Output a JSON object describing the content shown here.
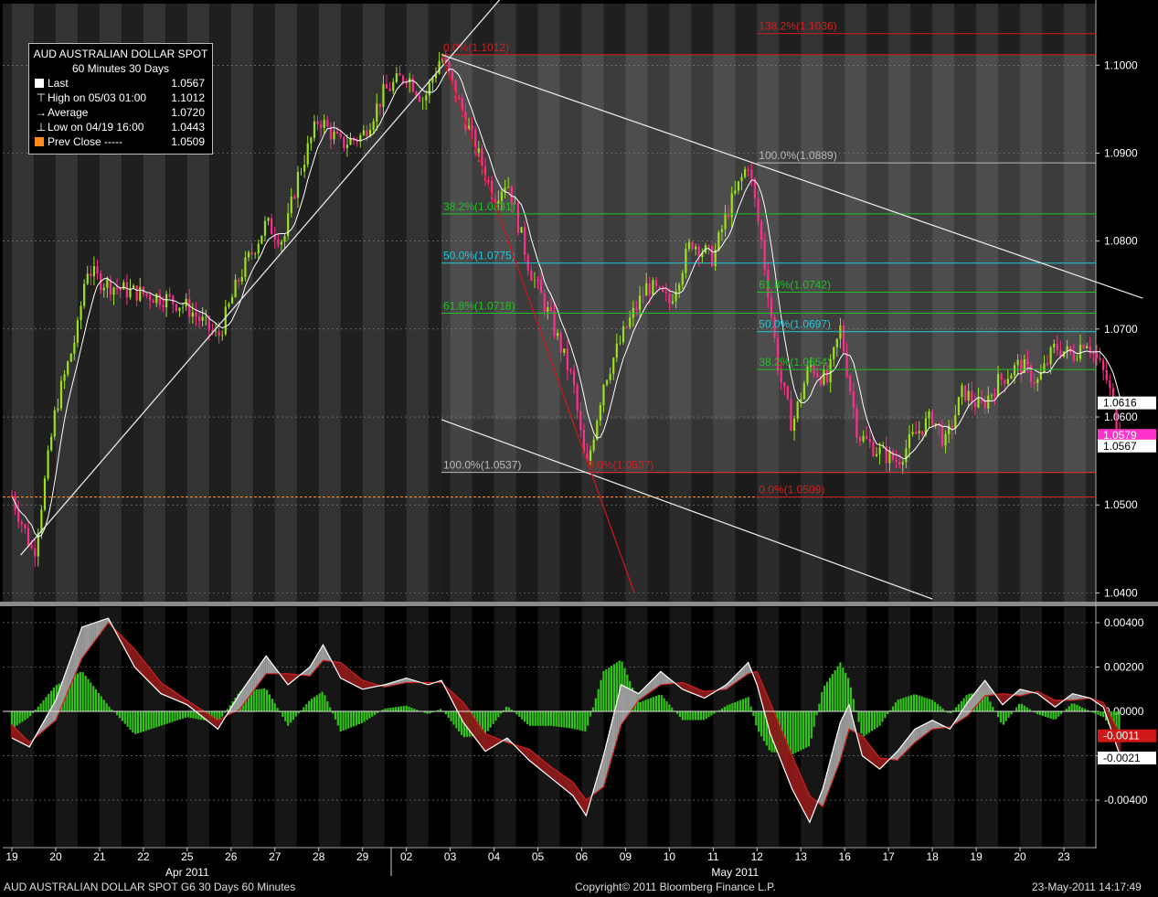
{
  "legend": {
    "title": "AUD  AUSTRALIAN DOLLAR SPOT",
    "subtitle": "60 Minutes  30 Days",
    "rows": [
      {
        "label": "Last",
        "value": "1.0567",
        "color": "#ffffff",
        "marker": "box"
      },
      {
        "label": "High on 05/03 01:00",
        "value": "1.1012",
        "color": "#ffffff",
        "marker": "high"
      },
      {
        "label": "Average",
        "value": "1.0720",
        "color": "#ffffff",
        "marker": "avg"
      },
      {
        "label": "Low on 04/19 16:00",
        "value": "1.0443",
        "color": "#ffffff",
        "marker": "low"
      },
      {
        "label": "Prev Close -----",
        "value": "1.0509",
        "color": "#ff8c1a",
        "marker": "box"
      }
    ]
  },
  "footer": {
    "left": "AUD  AUSTRALIAN DOLLAR SPOT      G6    30 Days  60 Minutes",
    "center": "Copyright© 2011 Bloomberg Finance L.P.",
    "right": "23-May-2011 14:17:49"
  },
  "chart_data": [
    {
      "type": "candlestick",
      "title": "AUD AUSTRALIAN DOLLAR SPOT",
      "ylim": [
        1.039,
        1.107
      ],
      "y_ticks": [
        "1.1000",
        "1.0900",
        "1.0800",
        "1.0700",
        "1.0600",
        "1.0500",
        "1.0400"
      ],
      "x_ticks": [
        "19",
        "20",
        "21",
        "22",
        "25",
        "26",
        "27",
        "28",
        "29",
        "02",
        "03",
        "04",
        "05",
        "06",
        "09",
        "10",
        "11",
        "12",
        "13",
        "16",
        "17",
        "18",
        "19",
        "20",
        "23"
      ],
      "month_labels": [
        "Apr 2011",
        "May 2011"
      ],
      "price_path": [
        [
          0,
          1.051
        ],
        [
          0.5,
          1.0443
        ],
        [
          1.0,
          1.061
        ],
        [
          1.5,
          1.07
        ],
        [
          1.7,
          1.077
        ],
        [
          2.0,
          1.0755
        ],
        [
          2.5,
          1.0745
        ],
        [
          3.0,
          1.074
        ],
        [
          3.5,
          1.0735
        ],
        [
          4.0,
          1.0725
        ],
        [
          4.7,
          1.069
        ],
        [
          5.2,
          1.076
        ],
        [
          5.8,
          1.082
        ],
        [
          6.2,
          1.08
        ],
        [
          6.5,
          1.087
        ],
        [
          7.0,
          1.094
        ],
        [
          7.5,
          1.091
        ],
        [
          8.0,
          1.092
        ],
        [
          8.5,
          1.097
        ],
        [
          9.0,
          1.099
        ],
        [
          9.4,
          1.096
        ],
        [
          9.8,
          1.1012
        ],
        [
          10.4,
          1.093
        ],
        [
          11.0,
          1.085
        ],
        [
          11.3,
          1.087
        ],
        [
          11.8,
          1.077
        ],
        [
          12.3,
          1.071
        ],
        [
          12.8,
          1.064
        ],
        [
          13.1,
          1.0537
        ],
        [
          13.5,
          1.064
        ],
        [
          14.0,
          1.07
        ],
        [
          14.5,
          1.075
        ],
        [
          15.0,
          1.073
        ],
        [
          15.5,
          1.08
        ],
        [
          16.0,
          1.078
        ],
        [
          16.3,
          1.083
        ],
        [
          16.8,
          1.0889
        ],
        [
          17.1,
          1.08
        ],
        [
          17.5,
          1.065
        ],
        [
          17.8,
          1.059
        ],
        [
          18.2,
          1.066
        ],
        [
          18.6,
          1.064
        ],
        [
          18.9,
          1.07
        ],
        [
          19.3,
          1.058
        ],
        [
          19.8,
          1.056
        ],
        [
          20.2,
          1.055
        ],
        [
          20.6,
          1.058
        ],
        [
          21.0,
          1.06
        ],
        [
          21.3,
          1.057
        ],
        [
          21.7,
          1.063
        ],
        [
          22.1,
          1.061
        ],
        [
          22.5,
          1.064
        ],
        [
          23.0,
          1.066
        ],
        [
          23.4,
          1.064
        ],
        [
          23.8,
          1.068
        ],
        [
          24.2,
          1.067
        ],
        [
          24.5,
          1.069
        ],
        [
          24.8,
          1.066
        ],
        [
          25.0,
          1.064
        ],
        [
          25.3,
          1.057
        ]
      ],
      "last_value_labels": [
        {
          "label": "1.0616",
          "value": 1.0616,
          "color": "#ffffff"
        },
        {
          "label": "1.0579",
          "value": 1.0579,
          "color": "#ff33cc"
        },
        {
          "label": "1.0567",
          "value": 1.0567,
          "color": "#ffffff"
        }
      ],
      "prev_close": 1.0509,
      "fib_levels": [
        {
          "label": "138.2%(1.1036)",
          "value": 1.1036,
          "color": "#d02020",
          "x_from": 17.0
        },
        {
          "label": "0.0%(1.1012)",
          "value": 1.1012,
          "color": "#d02020",
          "x_from": 9.8
        },
        {
          "label": "100.0%(1.0889)",
          "value": 1.0889,
          "color": "#b8b8b8",
          "x_from": 17.0
        },
        {
          "label": "38.2%(1.0831)",
          "value": 1.0831,
          "color": "#22c022",
          "x_from": 9.8
        },
        {
          "label": "50.0%(1.0775)",
          "value": 1.0775,
          "color": "#22c8d8",
          "x_from": 9.8
        },
        {
          "label": "61.8%(1.0742)",
          "value": 1.0742,
          "color": "#22c022",
          "x_from": 17.0
        },
        {
          "label": "61.8%(1.0718)",
          "value": 1.0718,
          "color": "#22c022",
          "x_from": 9.8
        },
        {
          "label": "50.0%(1.0697)",
          "value": 1.0697,
          "color": "#22c8d8",
          "x_from": 17.0
        },
        {
          "label": "38.2%(1.0654)",
          "value": 1.0654,
          "color": "#22c022",
          "x_from": 17.0
        },
        {
          "label": "100.0%(1.0537)",
          "value": 1.0537,
          "color": "#b8b8b8",
          "x_from": 9.8
        },
        {
          "label": "0.0%(1.0537)",
          "value": 1.0537,
          "color": "#d02020",
          "x_from": 13.1
        },
        {
          "label": "0.0%(1.0509)",
          "value": 1.0509,
          "color": "#d02020",
          "x_from": 17.0
        }
      ],
      "trendlines": [
        {
          "from": [
            0.2,
            1.0443
          ],
          "to": [
            13.3,
            1.12
          ],
          "color": "#e6e6e6"
        },
        {
          "from": [
            9.8,
            1.1012
          ],
          "to": [
            25.8,
            1.0735
          ],
          "color": "#e6e6e6"
        },
        {
          "from": [
            9.8,
            1.0597
          ],
          "to": [
            21.0,
            1.0393
          ],
          "color": "#e6e6e6"
        },
        {
          "from": [
            9.8,
            1.1012
          ],
          "to": [
            14.2,
            1.04
          ],
          "color": "#c81818"
        }
      ]
    },
    {
      "type": "macd",
      "ylim": [
        -0.0061,
        0.0047
      ],
      "y_ticks": [
        "0.00400",
        "0.00200",
        "0.00000",
        "-0.00200",
        "-0.00400"
      ],
      "value_labels": [
        {
          "label": "-0.0011",
          "value": -0.0011,
          "color": "#d01818"
        },
        {
          "label": "-0.0021",
          "value": -0.0021,
          "color": "#ffffff"
        }
      ],
      "macd_path": [
        [
          0,
          -0.0012
        ],
        [
          0.4,
          -0.0016
        ],
        [
          1.0,
          0.0005
        ],
        [
          1.6,
          0.0038
        ],
        [
          2.2,
          0.0042
        ],
        [
          2.8,
          0.002
        ],
        [
          3.4,
          0.0008
        ],
        [
          4.0,
          0.0003
        ],
        [
          4.7,
          -0.0008
        ],
        [
          5.2,
          0.0008
        ],
        [
          5.8,
          0.0025
        ],
        [
          6.3,
          0.0012
        ],
        [
          6.8,
          0.002
        ],
        [
          7.1,
          0.003
        ],
        [
          7.5,
          0.0015
        ],
        [
          8.0,
          0.001
        ],
        [
          8.5,
          0.0012
        ],
        [
          9.0,
          0.0015
        ],
        [
          9.5,
          0.0012
        ],
        [
          9.8,
          0.0014
        ],
        [
          10.3,
          -0.0005
        ],
        [
          10.8,
          -0.0018
        ],
        [
          11.3,
          -0.0012
        ],
        [
          11.8,
          -0.0022
        ],
        [
          12.3,
          -0.003
        ],
        [
          12.8,
          -0.0038
        ],
        [
          13.1,
          -0.0047
        ],
        [
          13.5,
          -0.002
        ],
        [
          13.9,
          0.0012
        ],
        [
          14.3,
          0.0008
        ],
        [
          14.8,
          0.0018
        ],
        [
          15.3,
          0.001
        ],
        [
          15.8,
          0.0006
        ],
        [
          16.3,
          0.0012
        ],
        [
          16.8,
          0.0022
        ],
        [
          17.0,
          0.0012
        ],
        [
          17.3,
          -0.001
        ],
        [
          17.8,
          -0.0035
        ],
        [
          18.2,
          -0.005
        ],
        [
          18.5,
          -0.0035
        ],
        [
          18.9,
          -0.0005
        ],
        [
          19.1,
          0.0003
        ],
        [
          19.4,
          -0.002
        ],
        [
          19.8,
          -0.0026
        ],
        [
          20.2,
          -0.0018
        ],
        [
          20.6,
          -0.0008
        ],
        [
          21.0,
          -0.0004
        ],
        [
          21.4,
          -0.0008
        ],
        [
          21.8,
          0.0004
        ],
        [
          22.2,
          0.0014
        ],
        [
          22.6,
          0.0003
        ],
        [
          23.0,
          0.001
        ],
        [
          23.4,
          0.0008
        ],
        [
          23.8,
          0.0002
        ],
        [
          24.2,
          0.0008
        ],
        [
          24.6,
          0.0006
        ],
        [
          24.9,
          0.0002
        ],
        [
          25.3,
          -0.0021
        ]
      ],
      "signal_path": [
        [
          0,
          -0.0006
        ],
        [
          0.4,
          -0.0014
        ],
        [
          1.0,
          -0.0004
        ],
        [
          1.6,
          0.0024
        ],
        [
          2.2,
          0.004
        ],
        [
          2.8,
          0.0028
        ],
        [
          3.4,
          0.0013
        ],
        [
          4.0,
          0.0005
        ],
        [
          4.7,
          -0.0004
        ],
        [
          5.2,
          0.0001
        ],
        [
          5.8,
          0.0017
        ],
        [
          6.3,
          0.0017
        ],
        [
          6.8,
          0.0016
        ],
        [
          7.1,
          0.0023
        ],
        [
          7.5,
          0.0022
        ],
        [
          8.0,
          0.0014
        ],
        [
          8.5,
          0.0011
        ],
        [
          9.0,
          0.0013
        ],
        [
          9.5,
          0.0013
        ],
        [
          9.8,
          0.0013
        ],
        [
          10.3,
          0.0004
        ],
        [
          10.8,
          -0.001
        ],
        [
          11.3,
          -0.0014
        ],
        [
          11.8,
          -0.0017
        ],
        [
          12.3,
          -0.0025
        ],
        [
          12.8,
          -0.0032
        ],
        [
          13.1,
          -0.004
        ],
        [
          13.5,
          -0.0034
        ],
        [
          13.9,
          -0.0006
        ],
        [
          14.3,
          0.0005
        ],
        [
          14.8,
          0.0012
        ],
        [
          15.3,
          0.0013
        ],
        [
          15.8,
          0.0009
        ],
        [
          16.3,
          0.001
        ],
        [
          16.8,
          0.0017
        ],
        [
          17.0,
          0.0018
        ],
        [
          17.3,
          0.0004
        ],
        [
          17.8,
          -0.002
        ],
        [
          18.2,
          -0.0038
        ],
        [
          18.5,
          -0.0043
        ],
        [
          18.9,
          -0.0022
        ],
        [
          19.1,
          -0.0008
        ],
        [
          19.4,
          -0.0011
        ],
        [
          19.8,
          -0.0021
        ],
        [
          20.2,
          -0.0022
        ],
        [
          20.6,
          -0.0014
        ],
        [
          21.0,
          -0.0008
        ],
        [
          21.4,
          -0.0007
        ],
        [
          21.8,
          -0.0002
        ],
        [
          22.2,
          0.0007
        ],
        [
          22.6,
          0.0008
        ],
        [
          23.0,
          0.0007
        ],
        [
          23.4,
          0.0009
        ],
        [
          23.8,
          0.0005
        ],
        [
          24.2,
          0.0005
        ],
        [
          24.6,
          0.0006
        ],
        [
          24.9,
          0.0004
        ],
        [
          25.3,
          -0.0011
        ]
      ]
    }
  ]
}
